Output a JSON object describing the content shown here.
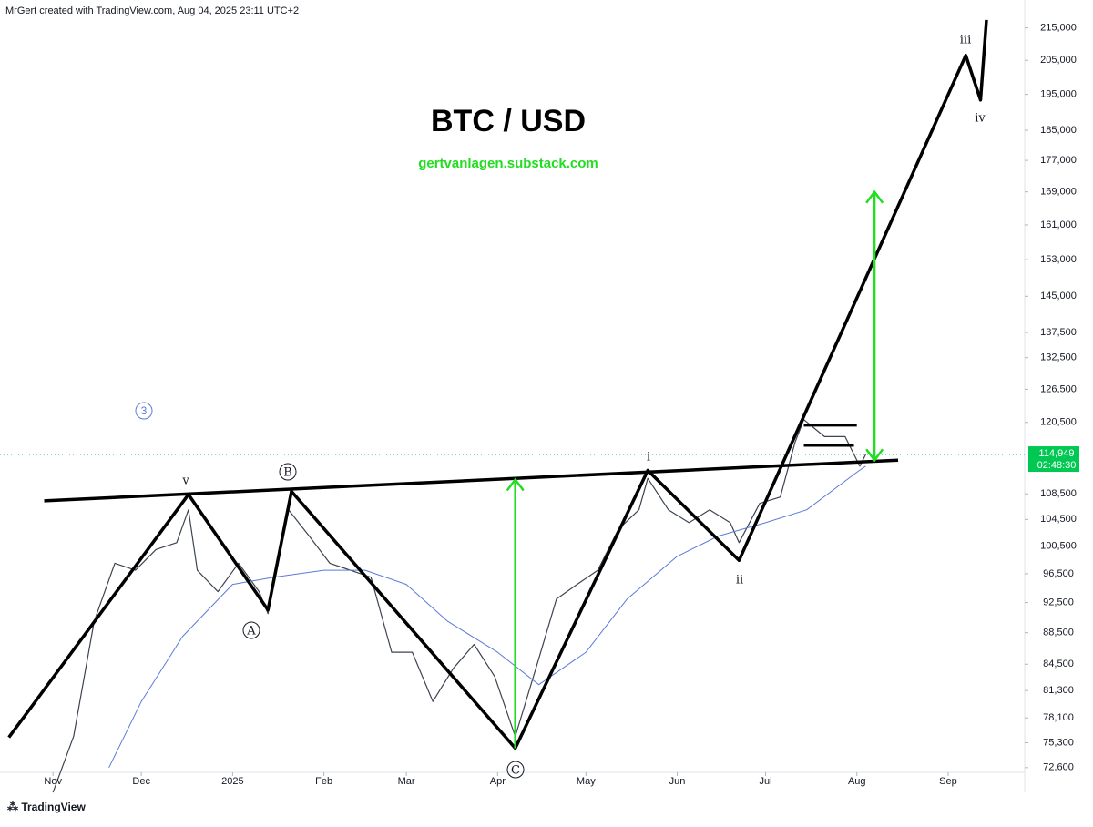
{
  "header": "MrGert created with TradingView.com, Aug 04, 2025 23:11 UTC+2",
  "footer": "TradingView",
  "chart_data": {
    "type": "line",
    "title": "BTC / USD",
    "subtitle": "gertvanlagen.substack.com",
    "log_scale": true,
    "xlim": [
      "2024-10-14",
      "2025-09-27"
    ],
    "xticks": [
      {
        "value": "2024-11-01",
        "label": "Nov"
      },
      {
        "value": "2024-12-01",
        "label": "Dec"
      },
      {
        "value": "2025-01-01",
        "label": "2025"
      },
      {
        "value": "2025-02-01",
        "label": "Feb"
      },
      {
        "value": "2025-03-01",
        "label": "Mar"
      },
      {
        "value": "2025-04-01",
        "label": "Apr"
      },
      {
        "value": "2025-05-01",
        "label": "May"
      },
      {
        "value": "2025-06-01",
        "label": "Jun"
      },
      {
        "value": "2025-07-01",
        "label": "Jul"
      },
      {
        "value": "2025-08-01",
        "label": "Aug"
      },
      {
        "value": "2025-09-01",
        "label": "Sep"
      }
    ],
    "ylim": [
      72100,
      221000
    ],
    "yticks": [
      {
        "value": 215000,
        "label": "215,000"
      },
      {
        "value": 205000,
        "label": "205,000"
      },
      {
        "value": 195000,
        "label": "195,000"
      },
      {
        "value": 185000,
        "label": "185,000"
      },
      {
        "value": 177000,
        "label": "177,000"
      },
      {
        "value": 169000,
        "label": "169,000"
      },
      {
        "value": 161000,
        "label": "161,000"
      },
      {
        "value": 153000,
        "label": "153,000"
      },
      {
        "value": 145000,
        "label": "145,000"
      },
      {
        "value": 137500,
        "label": "137,500"
      },
      {
        "value": 132500,
        "label": "132,500"
      },
      {
        "value": 126500,
        "label": "126,500"
      },
      {
        "value": 120500,
        "label": "120,500"
      },
      {
        "value": 108500,
        "label": "108,500"
      },
      {
        "value": 104500,
        "label": "104,500"
      },
      {
        "value": 100500,
        "label": "100,500"
      },
      {
        "value": 96500,
        "label": "96,500"
      },
      {
        "value": 92500,
        "label": "92,500"
      },
      {
        "value": 88500,
        "label": "88,500"
      },
      {
        "value": 84500,
        "label": "84,500"
      },
      {
        "value": 81300,
        "label": "81,300"
      },
      {
        "value": 78100,
        "label": "78,100"
      },
      {
        "value": 75300,
        "label": "75,300"
      },
      {
        "value": 72600,
        "label": "72,600"
      }
    ],
    "last_price": {
      "value": 114949,
      "label": "114,949",
      "countdown": "02:48:30",
      "color": "#00c853"
    },
    "wave_labels": [
      "v",
      "B",
      "A",
      "C",
      "i",
      "ii",
      "iii",
      "iv",
      "3"
    ],
    "series": [
      {
        "color": "#3d4451",
        "width": 1.2,
        "x": [
          "2024-11-01",
          "2024-11-08",
          "2024-11-15",
          "2024-11-22",
          "2024-11-29",
          "2024-12-06",
          "2024-12-13",
          "2024-12-17",
          "2024-12-20",
          "2024-12-27",
          "2025-01-03",
          "2025-01-10",
          "2025-01-13",
          "2025-01-20",
          "2025-01-27",
          "2025-02-03",
          "2025-02-10",
          "2025-02-17",
          "2025-02-24",
          "2025-03-03",
          "2025-03-10",
          "2025-03-17",
          "2025-03-24",
          "2025-03-31",
          "2025-04-07",
          "2025-04-14",
          "2025-04-21",
          "2025-04-28",
          "2025-05-05",
          "2025-05-12",
          "2025-05-19",
          "2025-05-22",
          "2025-05-29",
          "2025-06-05",
          "2025-06-12",
          "2025-06-19",
          "2025-06-22",
          "2025-06-29",
          "2025-07-06",
          "2025-07-11",
          "2025-07-14",
          "2025-07-21",
          "2025-07-28",
          "2025-08-02",
          "2025-08-04"
        ],
        "values": [
          70000,
          76000,
          90000,
          98000,
          97000,
          100000,
          101000,
          106000,
          97000,
          94000,
          98000,
          94000,
          91000,
          106000,
          102000,
          98000,
          97000,
          96000,
          86000,
          86000,
          80000,
          84000,
          87000,
          83000,
          76000,
          84000,
          93000,
          95000,
          97000,
          103000,
          106000,
          111000,
          106000,
          104000,
          106000,
          104000,
          101000,
          107000,
          108000,
          117000,
          121000,
          118000,
          118000,
          113000,
          114949
        ]
      },
      {
        "color": "#5b7bd5",
        "width": 1,
        "x": [
          "2024-11-20",
          "2024-12-01",
          "2024-12-15",
          "2025-01-01",
          "2025-01-15",
          "2025-02-01",
          "2025-02-15",
          "2025-03-01",
          "2025-03-15",
          "2025-04-01",
          "2025-04-15",
          "2025-05-01",
          "2025-05-15",
          "2025-06-01",
          "2025-06-15",
          "2025-07-01",
          "2025-07-15",
          "2025-08-01",
          "2025-08-04"
        ],
        "values": [
          72600,
          80000,
          88000,
          95000,
          96000,
          97000,
          97000,
          95000,
          90000,
          86000,
          82000,
          86000,
          93000,
          99000,
          102000,
          104000,
          106000,
          112000,
          113000
        ]
      },
      {
        "color": "#000000",
        "width": 3.5,
        "x": [
          "2024-10-17",
          "2024-12-17",
          "2025-01-13",
          "2025-01-21",
          "2025-04-07",
          "2025-05-22",
          "2025-06-22",
          "2025-09-07",
          "2025-09-12",
          "2025-09-14"
        ],
        "values": [
          75900,
          108400,
          91500,
          108900,
          74700,
          112300,
          98400,
          206500,
          193400,
          217500
        ]
      },
      {
        "color": "#000000",
        "width": 3.5,
        "x": [
          "2024-10-29",
          "2025-08-15"
        ],
        "values": [
          107400,
          114000
        ]
      },
      {
        "color": "#000000",
        "width": 3,
        "x": [
          "2025-07-14",
          "2025-08-01"
        ],
        "values": [
          120000,
          120000
        ]
      },
      {
        "color": "#000000",
        "width": 3,
        "x": [
          "2025-07-14",
          "2025-07-31"
        ],
        "values": [
          116500,
          116500
        ]
      },
      {
        "color": "#22dd22",
        "width": 2.5,
        "arrowheads": "end",
        "x": [
          "2025-04-07",
          "2025-04-07"
        ],
        "values": [
          74700,
          110800
        ]
      },
      {
        "color": "#22dd22",
        "width": 2.5,
        "arrowheads": "both",
        "x": [
          "2025-08-07",
          "2025-08-07"
        ],
        "values": [
          114000,
          169000
        ]
      }
    ]
  }
}
